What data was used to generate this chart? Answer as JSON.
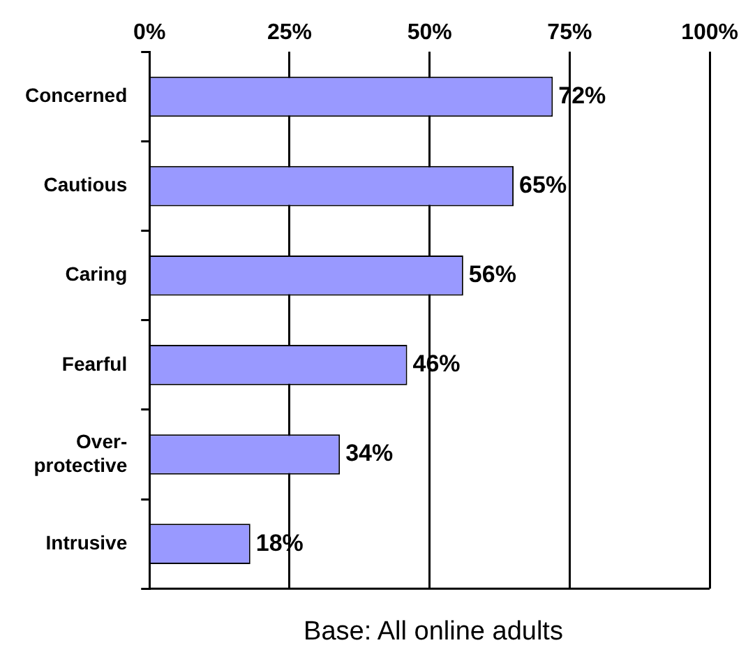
{
  "chart_data": {
    "type": "bar",
    "orientation": "horizontal",
    "categories": [
      "Concerned",
      "Cautious",
      "Caring",
      "Fearful",
      "Over-\nprotective",
      "Intrusive"
    ],
    "values": [
      72,
      65,
      56,
      46,
      34,
      18
    ],
    "value_labels": [
      "72%",
      "65%",
      "56%",
      "46%",
      "34%",
      "18%"
    ],
    "color": "#9999ff",
    "xlim": [
      0,
      100
    ],
    "xticks": [
      {
        "value": 0,
        "label": "0%"
      },
      {
        "value": 25,
        "label": "25%"
      },
      {
        "value": 50,
        "label": "50%"
      },
      {
        "value": 75,
        "label": "75%"
      },
      {
        "value": 100,
        "label": "100%"
      }
    ],
    "grid": "x",
    "annotations": [
      "Base: All online adults"
    ]
  }
}
